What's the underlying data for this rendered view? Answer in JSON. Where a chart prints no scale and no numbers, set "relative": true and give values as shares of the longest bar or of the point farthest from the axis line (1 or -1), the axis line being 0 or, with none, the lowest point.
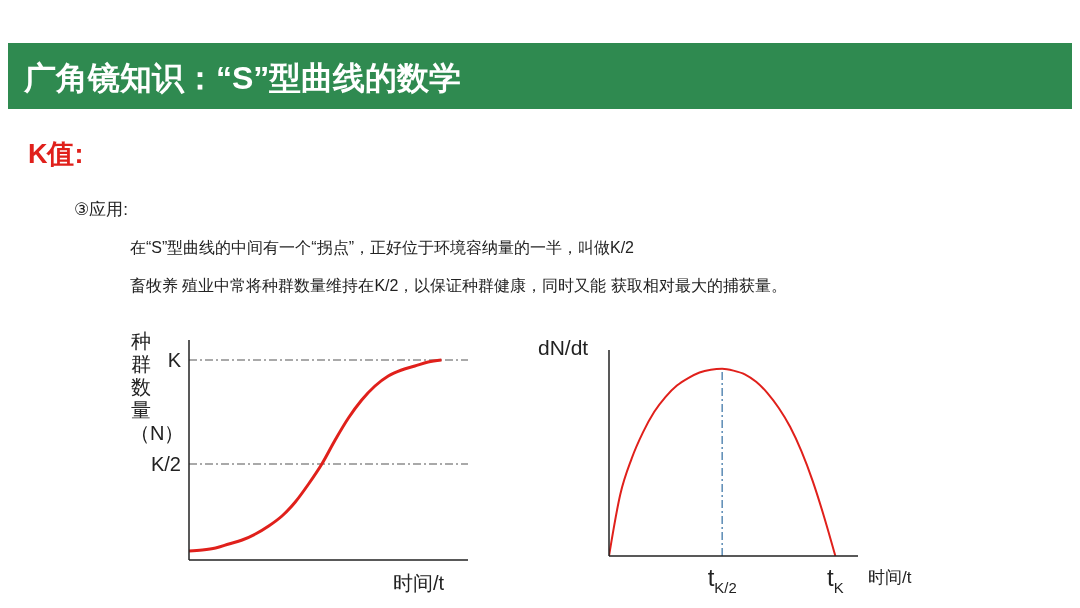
{
  "chart_data": [
    {
      "type": "other",
      "title": "广角镜知识：“S”型曲线的数学",
      "subtitle": "K值:",
      "annotations": [
        "③应用:",
        "在“S”型曲线的中间有一个“拐点”，正好位于环境容纳量的一半，叫做K/2",
        "畜牧养 殖业中常将种群数量维持在K/2，以保证种群健康，同时又能 获取相对最大的捕获量。"
      ]
    },
    {
      "type": "line",
      "relative": true,
      "ylabel": "种群数量（N）",
      "xlabel": "时间/t",
      "categories": [
        null,
        null,
        null,
        null,
        null,
        null,
        null,
        null,
        null,
        null,
        null,
        null,
        null,
        null,
        null,
        null,
        null,
        null,
        null,
        null,
        null,
        null
      ],
      "series": [
        {
          "color": "#e0201b",
          "values": [
            0.045,
            0.05,
            0.06,
            0.08,
            0.1,
            0.13,
            0.17,
            0.22,
            0.29,
            0.38,
            0.48,
            0.6,
            0.71,
            0.8,
            0.87,
            0.92,
            0.95,
            0.97,
            0.99,
            1,
            null,
            null
          ]
        }
      ],
      "ref_lines": [
        {
          "axis": "y",
          "value": 1,
          "label": "K",
          "color": "#555555",
          "line_style": "dashed"
        },
        {
          "axis": "y",
          "value": 0.48,
          "label": "K/2",
          "color": "#555555",
          "line_style": "dashed"
        }
      ]
    },
    {
      "type": "line",
      "relative": true,
      "ylabel": "dN/dt",
      "xlabel": "时间/t",
      "categories": [
        null,
        null,
        null,
        null,
        null,
        null,
        null,
        null,
        null,
        null,
        "t$_{K/2}$",
        null,
        null,
        null,
        null,
        null,
        null,
        null,
        null,
        null,
        "t$_{K}$",
        null,
        null
      ],
      "series": [
        {
          "color": "#e0201b",
          "values": [
            0,
            0.33,
            0.52,
            0.66,
            0.77,
            0.85,
            0.91,
            0.95,
            0.98,
            0.995,
            1,
            0.99,
            0.97,
            0.93,
            0.87,
            0.79,
            0.69,
            0.56,
            0.4,
            0.21,
            0,
            null,
            null
          ]
        }
      ],
      "ref_lines": [
        {
          "axis": "x",
          "value": "t$_{K/2}$",
          "color": "#5b8bb5",
          "line_style": "dashed"
        }
      ]
    }
  ]
}
